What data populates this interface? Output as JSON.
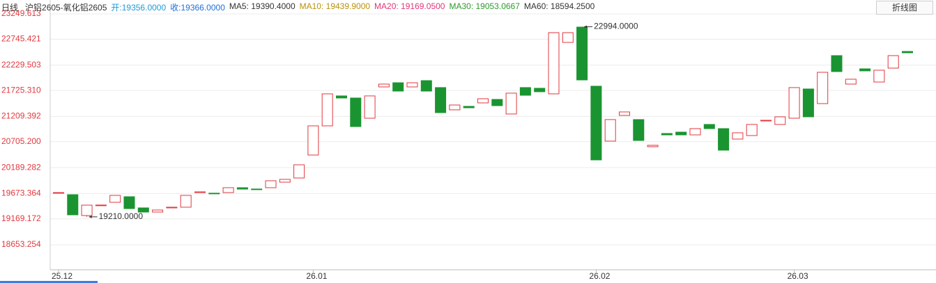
{
  "chart_data": {
    "type": "candlestick",
    "header": [
      {
        "text": "日线",
        "color": "#333333"
      },
      {
        "text": "沪铝2605-氧化铝2605",
        "color": "#333333"
      },
      {
        "text": "开:19356.0000",
        "color": "#1e9bd7"
      },
      {
        "text": "收:19366.0000",
        "color": "#1e6fd7"
      },
      {
        "text": "MA5: 19390.4000",
        "color": "#333333"
      },
      {
        "text": "MA10: 19439.9000",
        "color": "#b8920a"
      },
      {
        "text": "MA20: 19169.0500",
        "color": "#e0357a"
      },
      {
        "text": "MA30: 19053.0667",
        "color": "#2e9a2e"
      },
      {
        "text": "MA60: 18594.2500",
        "color": "#333333"
      }
    ],
    "button": "折线图",
    "categories": [
      "25.12",
      null,
      null,
      null,
      null,
      null,
      null,
      null,
      null,
      null,
      null,
      null,
      null,
      null,
      null,
      null,
      null,
      null,
      "26.01",
      null,
      null,
      null,
      null,
      null,
      null,
      null,
      null,
      null,
      null,
      null,
      null,
      null,
      null,
      null,
      null,
      null,
      null,
      null,
      "26.02",
      null,
      null,
      null,
      null,
      null,
      null,
      null,
      null,
      null,
      null,
      null,
      null,
      null,
      "26.03",
      null,
      null,
      null,
      null,
      null,
      null,
      null,
      null
    ],
    "open": [
      19690,
      19651,
      19236,
      19443,
      19499,
      19610,
      19388,
      19305,
      19388,
      19402,
      19705,
      19681,
      19693,
      19790,
      19764,
      19790,
      19900,
      19983,
      20440,
      21021,
      21617,
      21575,
      21173,
      21796,
      21879,
      21796,
      21921,
      21783,
      21340,
      21409,
      21478,
      21547,
      21257,
      21783,
      21769,
      21658,
      22682,
      22987,
      21810,
      20717,
      21229,
      21146,
      20606,
      20869,
      20896,
      20841,
      21049,
      20966,
      20758,
      20828,
      21118,
      21049,
      21173,
      21755,
      21464,
      22419,
      21852,
      22156,
      21893,
      22170,
      22502
    ],
    "close": [
      19693,
      19250,
      19443,
      19445,
      19637,
      19374,
      19305,
      19346,
      19402,
      19637,
      19707,
      19679,
      19790,
      19762,
      19762,
      19928,
      19956,
      20246,
      21021,
      21658,
      21575,
      21007,
      21617,
      21852,
      21713,
      21879,
      21713,
      21284,
      21436,
      21381,
      21561,
      21423,
      21672,
      21630,
      21700,
      22876,
      22876,
      21935,
      20343,
      21146,
      21298,
      20730,
      20634,
      20841,
      20841,
      20966,
      20966,
      20537,
      20883,
      21049,
      21132,
      21201,
      21783,
      21201,
      22087,
      22101,
      21949,
      22115,
      22129,
      22419,
      22475
    ],
    "high": [
      19693,
      19651,
      19443,
      19445,
      19637,
      19610,
      19388,
      19346,
      19402,
      19637,
      19707,
      19681,
      19790,
      19790,
      19764,
      19928,
      19956,
      20246,
      21021,
      21658,
      21617,
      21575,
      21617,
      21852,
      21879,
      21879,
      21921,
      21783,
      21436,
      21409,
      21561,
      21547,
      21672,
      21783,
      21769,
      22876,
      22876,
      22994,
      21810,
      21146,
      21298,
      21146,
      20634,
      20869,
      20896,
      20966,
      21049,
      20966,
      20883,
      21049,
      21132,
      21201,
      21783,
      21755,
      22087,
      22419,
      21949,
      22156,
      22129,
      22419,
      22502
    ],
    "low": [
      19690,
      19250,
      19210,
      19443,
      19499,
      19374,
      19305,
      19305,
      19388,
      19402,
      19705,
      19679,
      19693,
      19762,
      19762,
      19790,
      19900,
      19983,
      20440,
      21021,
      21575,
      21007,
      21173,
      21796,
      21713,
      21796,
      21713,
      21284,
      21340,
      21381,
      21478,
      21423,
      21257,
      21630,
      21700,
      21658,
      22682,
      21935,
      20343,
      20717,
      21229,
      20730,
      20606,
      20841,
      20841,
      20841,
      20966,
      20537,
      20758,
      20828,
      21118,
      21049,
      21173,
      21201,
      21464,
      22101,
      21852,
      22115,
      21893,
      22170,
      22475
    ],
    "up_color": "#e0383e",
    "down_color": "#1a9431",
    "max_label": "22994.0000",
    "min_label": "19210.0000",
    "ylim": [
      18156,
      23526
    ],
    "yticks": [
      23249.613,
      22745.421,
      22229.503,
      {
        "value": 21725.31,
        "label": "21725.310"
      },
      21209.392,
      {
        "value": 20705.2,
        "label": "20705.200"
      },
      20189.282,
      19673.364,
      19169.172,
      18653.254
    ],
    "grid": true
  }
}
